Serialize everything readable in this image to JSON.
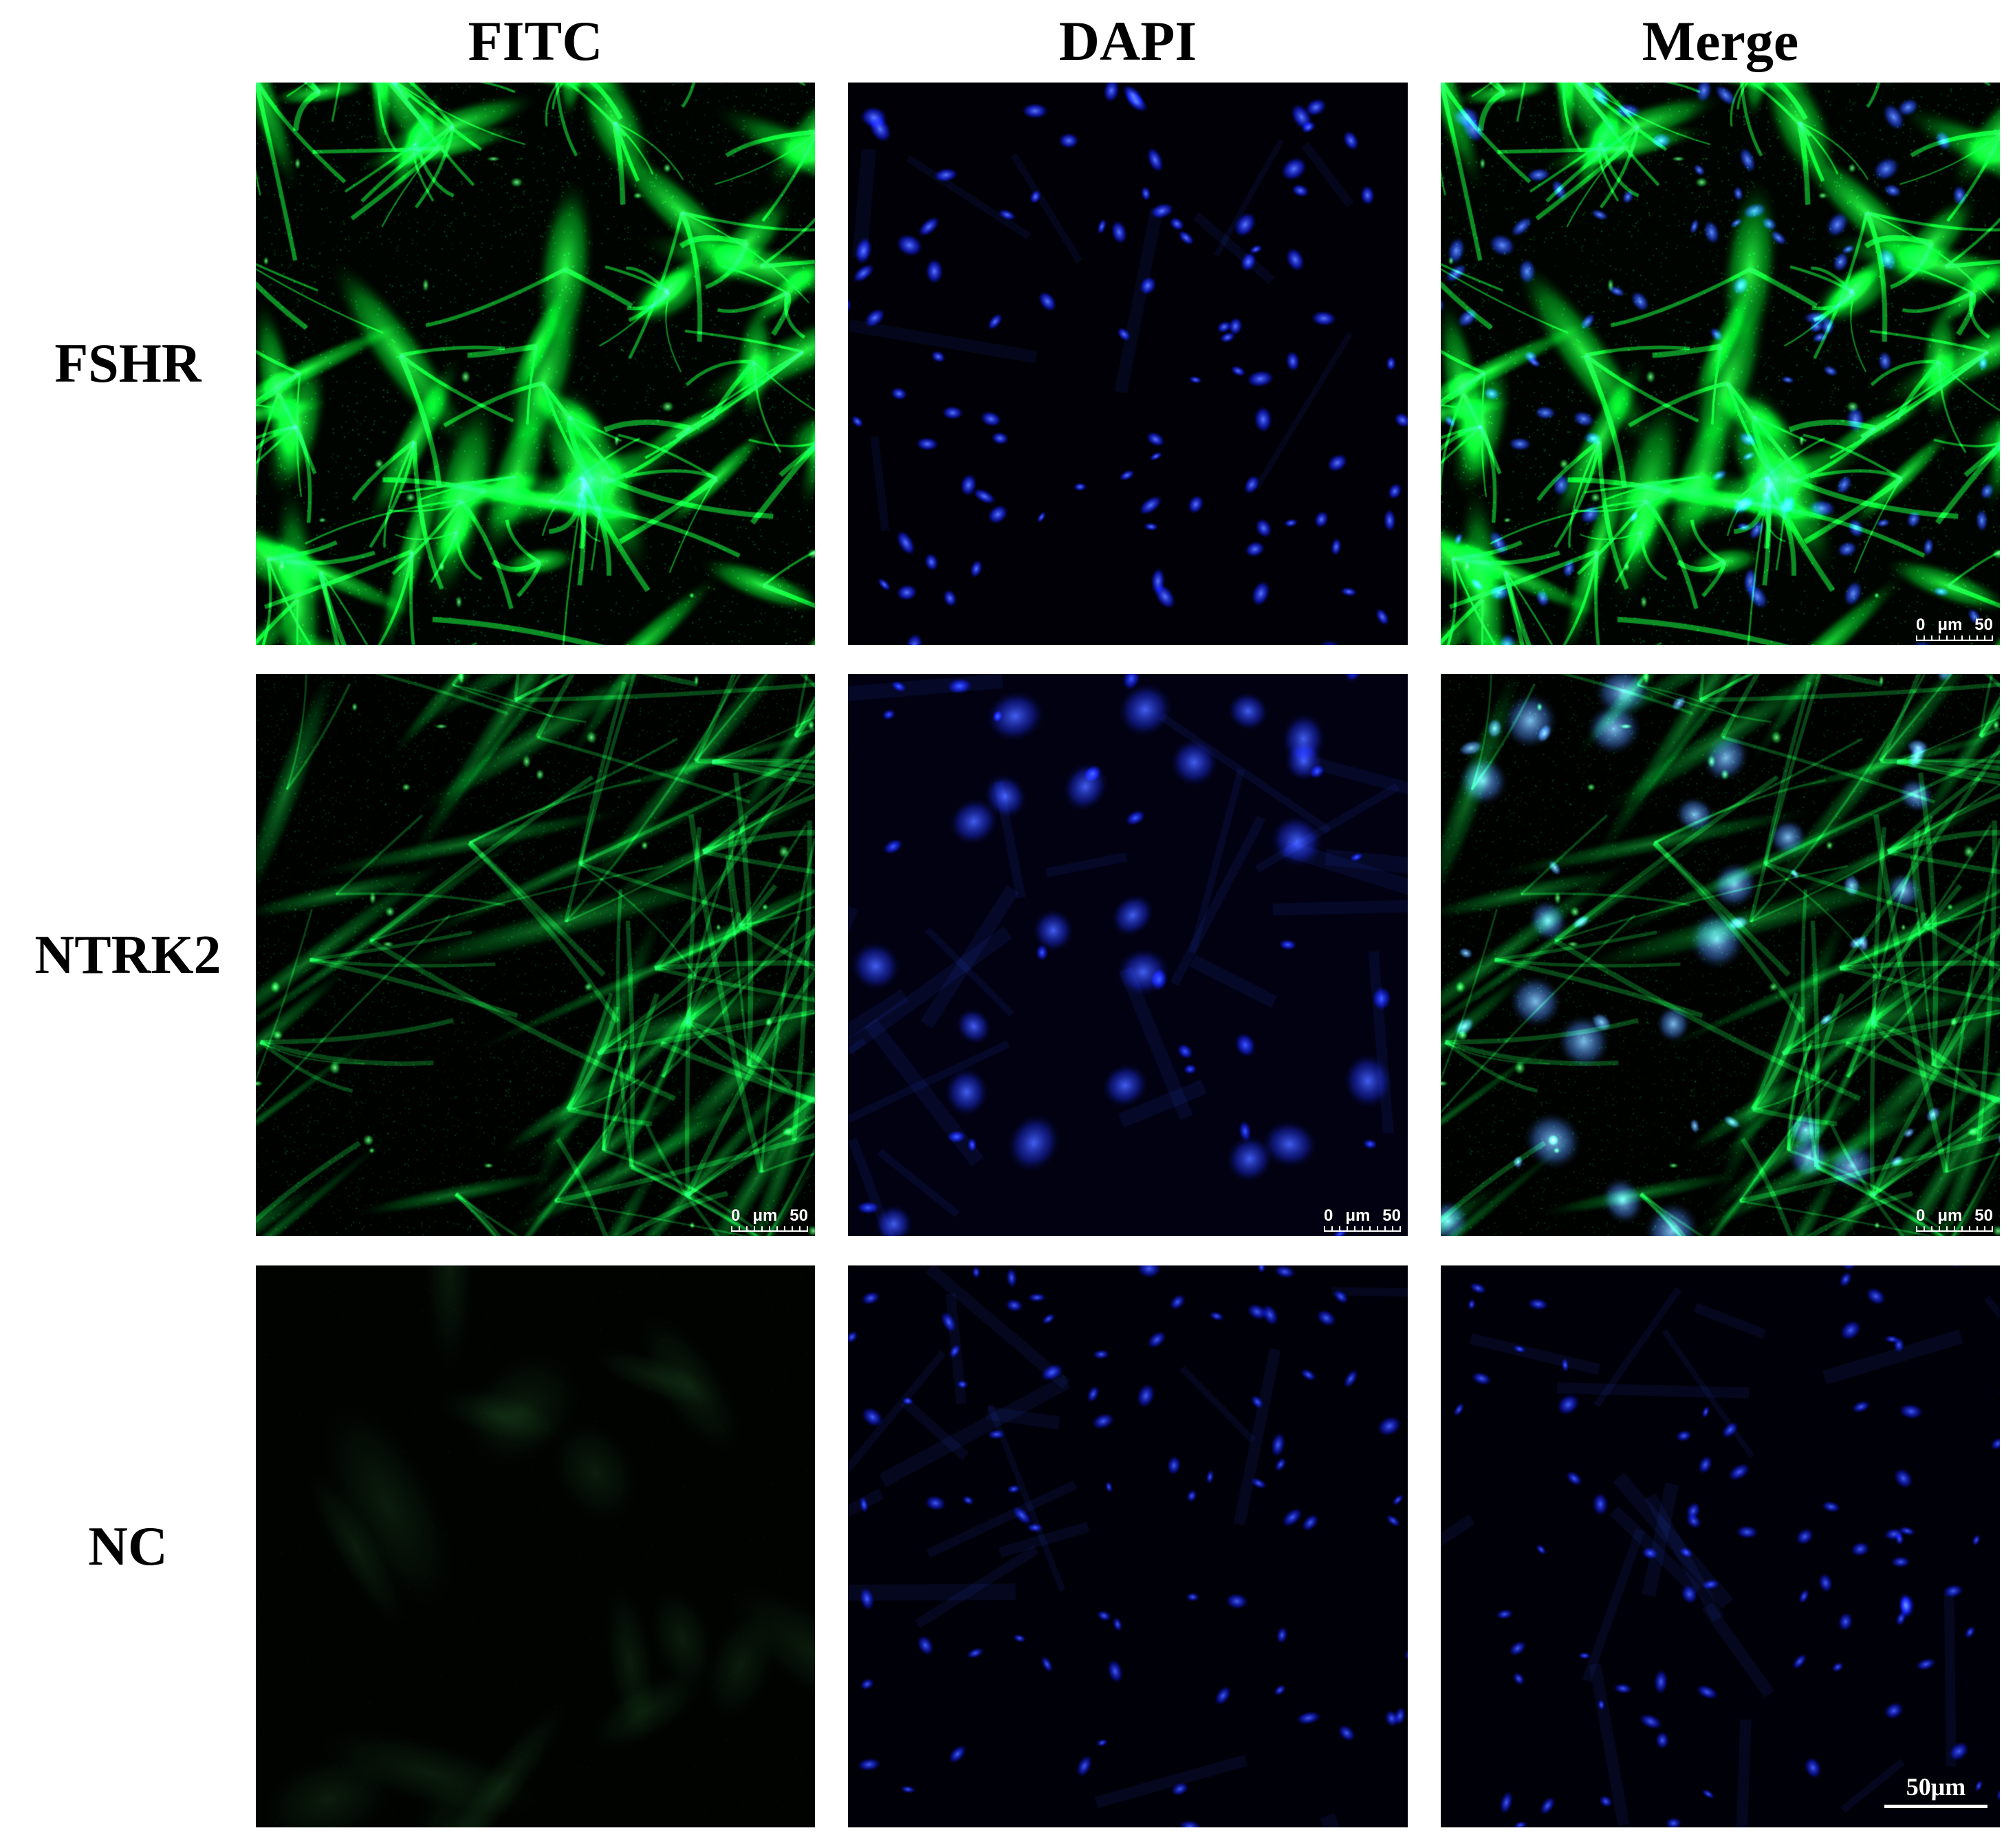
{
  "figure": {
    "column_headers": [
      {
        "label": "FITC"
      },
      {
        "label": "DAPI"
      },
      {
        "label": "Merge"
      }
    ],
    "row_labels": [
      {
        "label": "FSHR"
      },
      {
        "label": "NTRK2"
      },
      {
        "label": "NC"
      }
    ],
    "panels": [
      {
        "id": "fshr-fitc",
        "row_label": "FSHR",
        "column": "FITC",
        "content": "bright green FITC-stained cells",
        "scalebar": "none"
      },
      {
        "id": "fshr-dapi",
        "row_label": "FSHR",
        "column": "DAPI",
        "content": "blue DAPI-stained nuclei",
        "scalebar": "none"
      },
      {
        "id": "fshr-merge",
        "row_label": "FSHR",
        "column": "Merge",
        "content": "merge of FITC and DAPI",
        "scalebar": "ruler"
      },
      {
        "id": "ntrk2-fitc",
        "row_label": "NTRK2",
        "column": "FITC",
        "content": "dim green FITC-stained spindle cells",
        "scalebar": "ruler"
      },
      {
        "id": "ntrk2-dapi",
        "row_label": "NTRK2",
        "column": "DAPI",
        "content": "blue DAPI-stained nuclei",
        "scalebar": "ruler"
      },
      {
        "id": "ntrk2-merge",
        "row_label": "NTRK2",
        "column": "Merge",
        "content": "merge of FITC and DAPI",
        "scalebar": "ruler"
      },
      {
        "id": "nc-fitc",
        "row_label": "NC",
        "column": "FITC",
        "content": "negative control, no green signal",
        "scalebar": "none"
      },
      {
        "id": "nc-dapi",
        "row_label": "NC",
        "column": "DAPI",
        "content": "blue DAPI-stained nuclei",
        "scalebar": "none"
      },
      {
        "id": "nc-merge",
        "row_label": "NC",
        "column": "Merge",
        "content": "merge, DAPI only",
        "scalebar": "bar"
      }
    ],
    "scalebar_ruler": {
      "min": "0",
      "unit": "μm",
      "max": "50"
    },
    "scalebar_bar": {
      "label": "50μm"
    },
    "colors": {
      "fitc_green": "#1ee344",
      "fitc_green_dim": "#0f8c2c",
      "dapi_blue": "#2434f0",
      "dapi_blue_bright": "#5a78ff",
      "merge_nuclei_cyan": "#8fd2ff",
      "panel_background": "#000000",
      "page_background": "#ffffff",
      "label_text": "#000000",
      "scalebar_text": "#ffffff"
    }
  }
}
